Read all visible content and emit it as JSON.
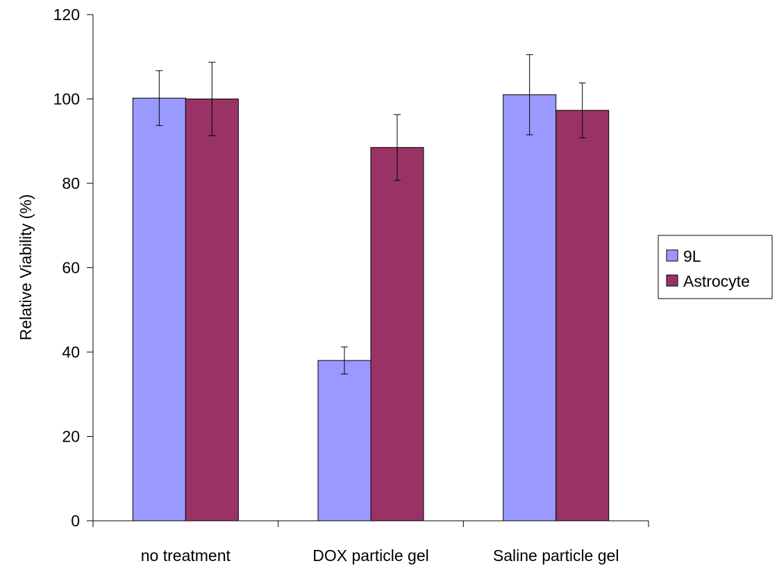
{
  "chart_data": {
    "type": "bar",
    "title": "",
    "xlabel": "",
    "ylabel": "Relative Viability (%)",
    "ylim": [
      0,
      120
    ],
    "yticks": [
      0,
      20,
      40,
      60,
      80,
      100,
      120
    ],
    "categories": [
      "no treatment",
      "DOX particle gel",
      "Saline particle gel"
    ],
    "series": [
      {
        "name": "9L",
        "color": "#9999ff",
        "values": [
          100.2,
          38,
          101
        ],
        "errors": [
          6.5,
          3.2,
          9.5
        ]
      },
      {
        "name": "Astrocyte",
        "color": "#993366",
        "values": [
          100,
          88.5,
          97.3
        ],
        "errors": [
          8.7,
          7.8,
          6.5
        ]
      }
    ],
    "grid": false,
    "legend_position": "right"
  }
}
